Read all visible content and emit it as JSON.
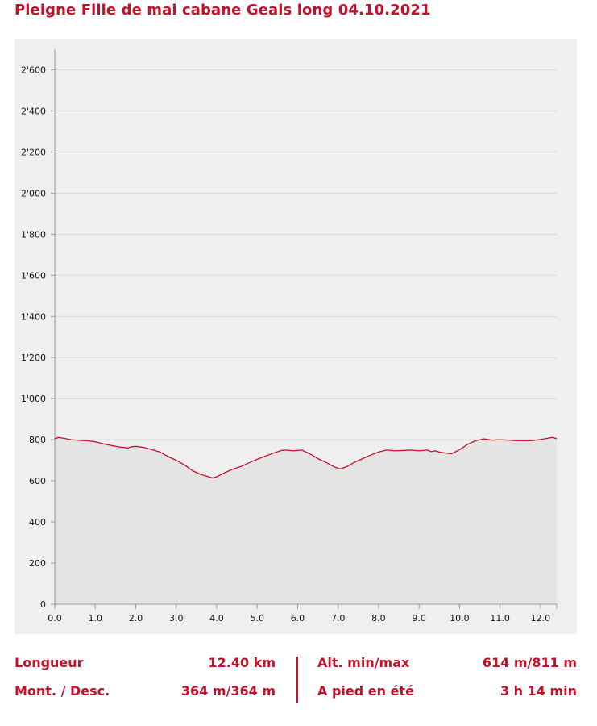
{
  "title": "Pleigne Fille de mai cabane Geais long 04.10.2021",
  "colors": {
    "accent": "#c5102a",
    "panel": "#efefef",
    "fill": "#e4e4e4",
    "grid": "#d8d8d8"
  },
  "chart_data": {
    "type": "area",
    "title": "Pleigne Fille de mai cabane Geais long 04.10.2021",
    "xlabel": "",
    "ylabel": "",
    "xlim": [
      0,
      12.4
    ],
    "ylim": [
      0,
      2700
    ],
    "grid": true,
    "legend": "none",
    "x_ticks": [
      0,
      1,
      2,
      3,
      4,
      5,
      6,
      7,
      8,
      9,
      10,
      11,
      12
    ],
    "x_tick_labels": [
      "0.0",
      "1.0",
      "2.0",
      "3.0",
      "4.0",
      "5.0",
      "6.0",
      "7.0",
      "8.0",
      "9.0",
      "10.0",
      "11.0",
      "12.0"
    ],
    "y_ticks": [
      0,
      200,
      400,
      600,
      800,
      1000,
      1200,
      1400,
      1600,
      1800,
      2000,
      2200,
      2400,
      2600
    ],
    "y_tick_labels": [
      "0",
      "200",
      "400",
      "600",
      "800",
      "1'000",
      "1'200",
      "1'400",
      "1'600",
      "1'800",
      "2'000",
      "2'200",
      "2'400",
      "2'600"
    ],
    "series": [
      {
        "name": "",
        "color": "#c5102a",
        "x": [
          0,
          0.1,
          0.2,
          0.4,
          0.6,
          0.8,
          1.0,
          1.2,
          1.4,
          1.6,
          1.8,
          1.9,
          2.0,
          2.2,
          2.4,
          2.6,
          2.8,
          3.0,
          3.2,
          3.4,
          3.6,
          3.8,
          3.9,
          4.0,
          4.2,
          4.4,
          4.6,
          4.8,
          5.0,
          5.2,
          5.4,
          5.6,
          5.7,
          5.9,
          6.1,
          6.3,
          6.5,
          6.7,
          6.9,
          7.05,
          7.2,
          7.4,
          7.6,
          7.8,
          8.0,
          8.2,
          8.4,
          8.6,
          8.8,
          9.0,
          9.2,
          9.3,
          9.4,
          9.5,
          9.7,
          9.8,
          10.0,
          10.2,
          10.4,
          10.6,
          10.8,
          11.0,
          11.2,
          11.4,
          11.6,
          11.8,
          12.0,
          12.2,
          12.3,
          12.4
        ],
        "y": [
          805,
          811,
          808,
          800,
          797,
          795,
          790,
          780,
          772,
          765,
          760,
          766,
          768,
          763,
          752,
          740,
          718,
          700,
          678,
          650,
          632,
          620,
          614,
          620,
          640,
          657,
          670,
          688,
          705,
          720,
          735,
          748,
          750,
          746,
          750,
          732,
          708,
          690,
          668,
          658,
          668,
          690,
          708,
          725,
          740,
          750,
          746,
          748,
          750,
          746,
          750,
          742,
          746,
          740,
          734,
          732,
          752,
          778,
          795,
          804,
          798,
          800,
          798,
          796,
          795,
          796,
          801,
          808,
          811,
          805
        ]
      }
    ]
  },
  "stats": {
    "length_label": "Longueur",
    "length_value": "12.40 km",
    "updown_label": "Mont. / Desc.",
    "updown_value": "364 m/364 m",
    "altitude_label": "Alt. min/max",
    "altitude_value": "614 m/811 m",
    "walk_label": "A pied en été",
    "walk_value": "3 h 14 min"
  }
}
